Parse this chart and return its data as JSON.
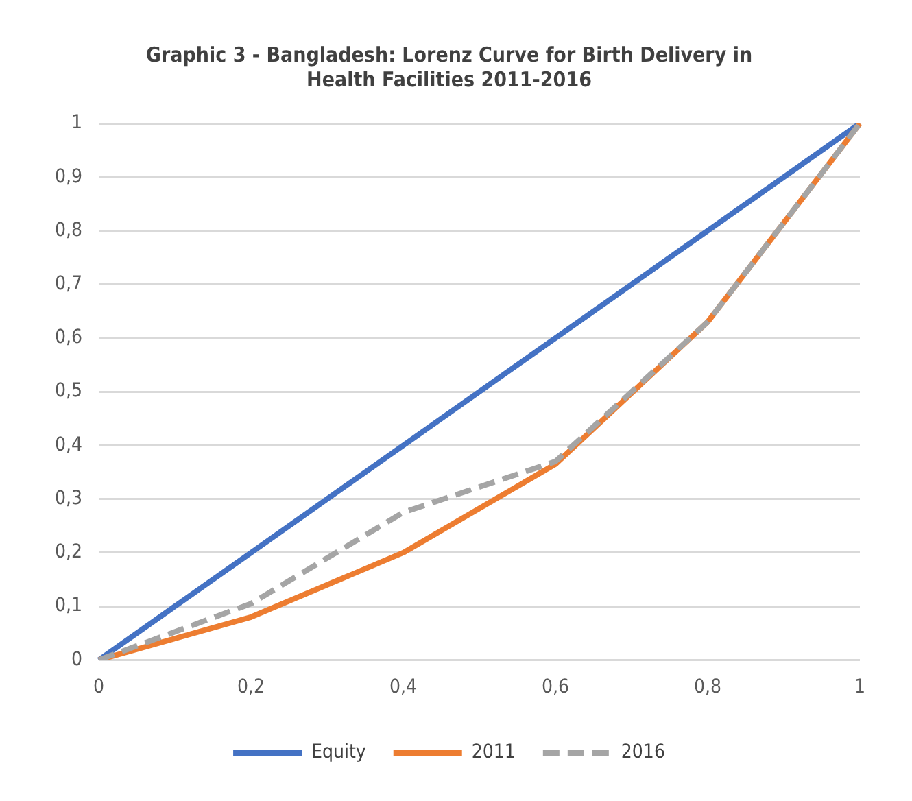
{
  "chart_data": {
    "type": "line",
    "title": "Graphic 3 - Bangladesh: Lorenz Curve for Birth Delivery in Health Facilities 2011-2016",
    "categories": [
      "0",
      "0,2",
      "0,4",
      "0,6",
      "0,8",
      "1"
    ],
    "series": [
      {
        "name": "Equity",
        "color": "#4472c4",
        "values": [
          0,
          0.2,
          0.4,
          0.6,
          0.8,
          1
        ]
      },
      {
        "name": "2011",
        "color": "#ed7d31",
        "values": [
          0,
          0.08,
          0.2,
          0.365,
          0.63,
          1
        ]
      },
      {
        "name": "2016",
        "color": "#a5a5a5",
        "values": [
          0,
          0.105,
          0.275,
          0.37,
          0.63,
          1
        ],
        "line_style": "dashed"
      }
    ],
    "ylim": [
      0,
      1
    ],
    "yticks": [
      0,
      {
        "value": 0.1,
        "label": "0,1"
      },
      {
        "value": 0.2,
        "label": "0,2"
      },
      {
        "value": 0.3,
        "label": "0,3"
      },
      {
        "value": 0.4,
        "label": "0,4"
      },
      {
        "value": 0.5,
        "label": "0,5"
      },
      {
        "value": 0.6,
        "label": "0,6"
      },
      {
        "value": 0.7,
        "label": "0,7"
      },
      {
        "value": 0.8,
        "label": "0,8"
      },
      {
        "value": 0.9,
        "label": "0,9"
      },
      1
    ],
    "grid": "y",
    "legend": "bottom",
    "marker": "none"
  }
}
